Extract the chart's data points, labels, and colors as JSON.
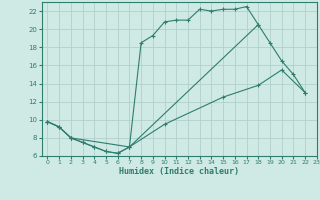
{
  "xlabel": "Humidex (Indice chaleur)",
  "xlim": [
    -0.5,
    23
  ],
  "ylim": [
    6,
    23
  ],
  "yticks": [
    6,
    8,
    10,
    12,
    14,
    16,
    18,
    20,
    22
  ],
  "xticks": [
    0,
    1,
    2,
    3,
    4,
    5,
    6,
    7,
    8,
    9,
    10,
    11,
    12,
    13,
    14,
    15,
    16,
    17,
    18,
    19,
    20,
    21,
    22,
    23
  ],
  "bg_color": "#cfe9e5",
  "grid_color": "#b0d0cc",
  "line_color": "#2e7d6e",
  "curve1_x": [
    0,
    1,
    2,
    3,
    4,
    5,
    6,
    7,
    8,
    9,
    10,
    11,
    12,
    13,
    14,
    15,
    16,
    17,
    18
  ],
  "curve1_y": [
    9.8,
    9.2,
    8.0,
    7.5,
    7.0,
    6.5,
    6.3,
    7.0,
    18.5,
    19.3,
    20.8,
    21.0,
    21.0,
    22.2,
    22.0,
    22.2,
    22.2,
    22.5,
    20.5
  ],
  "curve2_x": [
    0,
    1,
    2,
    3,
    4,
    5,
    6,
    7,
    18,
    19,
    20,
    21,
    22
  ],
  "curve2_y": [
    9.8,
    9.2,
    8.0,
    7.5,
    7.0,
    6.5,
    6.3,
    7.0,
    20.5,
    18.5,
    16.5,
    15.0,
    13.0
  ],
  "curve3_x": [
    0,
    1,
    2,
    7,
    10,
    15,
    18,
    20,
    22
  ],
  "curve3_y": [
    9.8,
    9.2,
    8.0,
    7.0,
    9.5,
    12.5,
    13.8,
    15.5,
    13.0
  ]
}
